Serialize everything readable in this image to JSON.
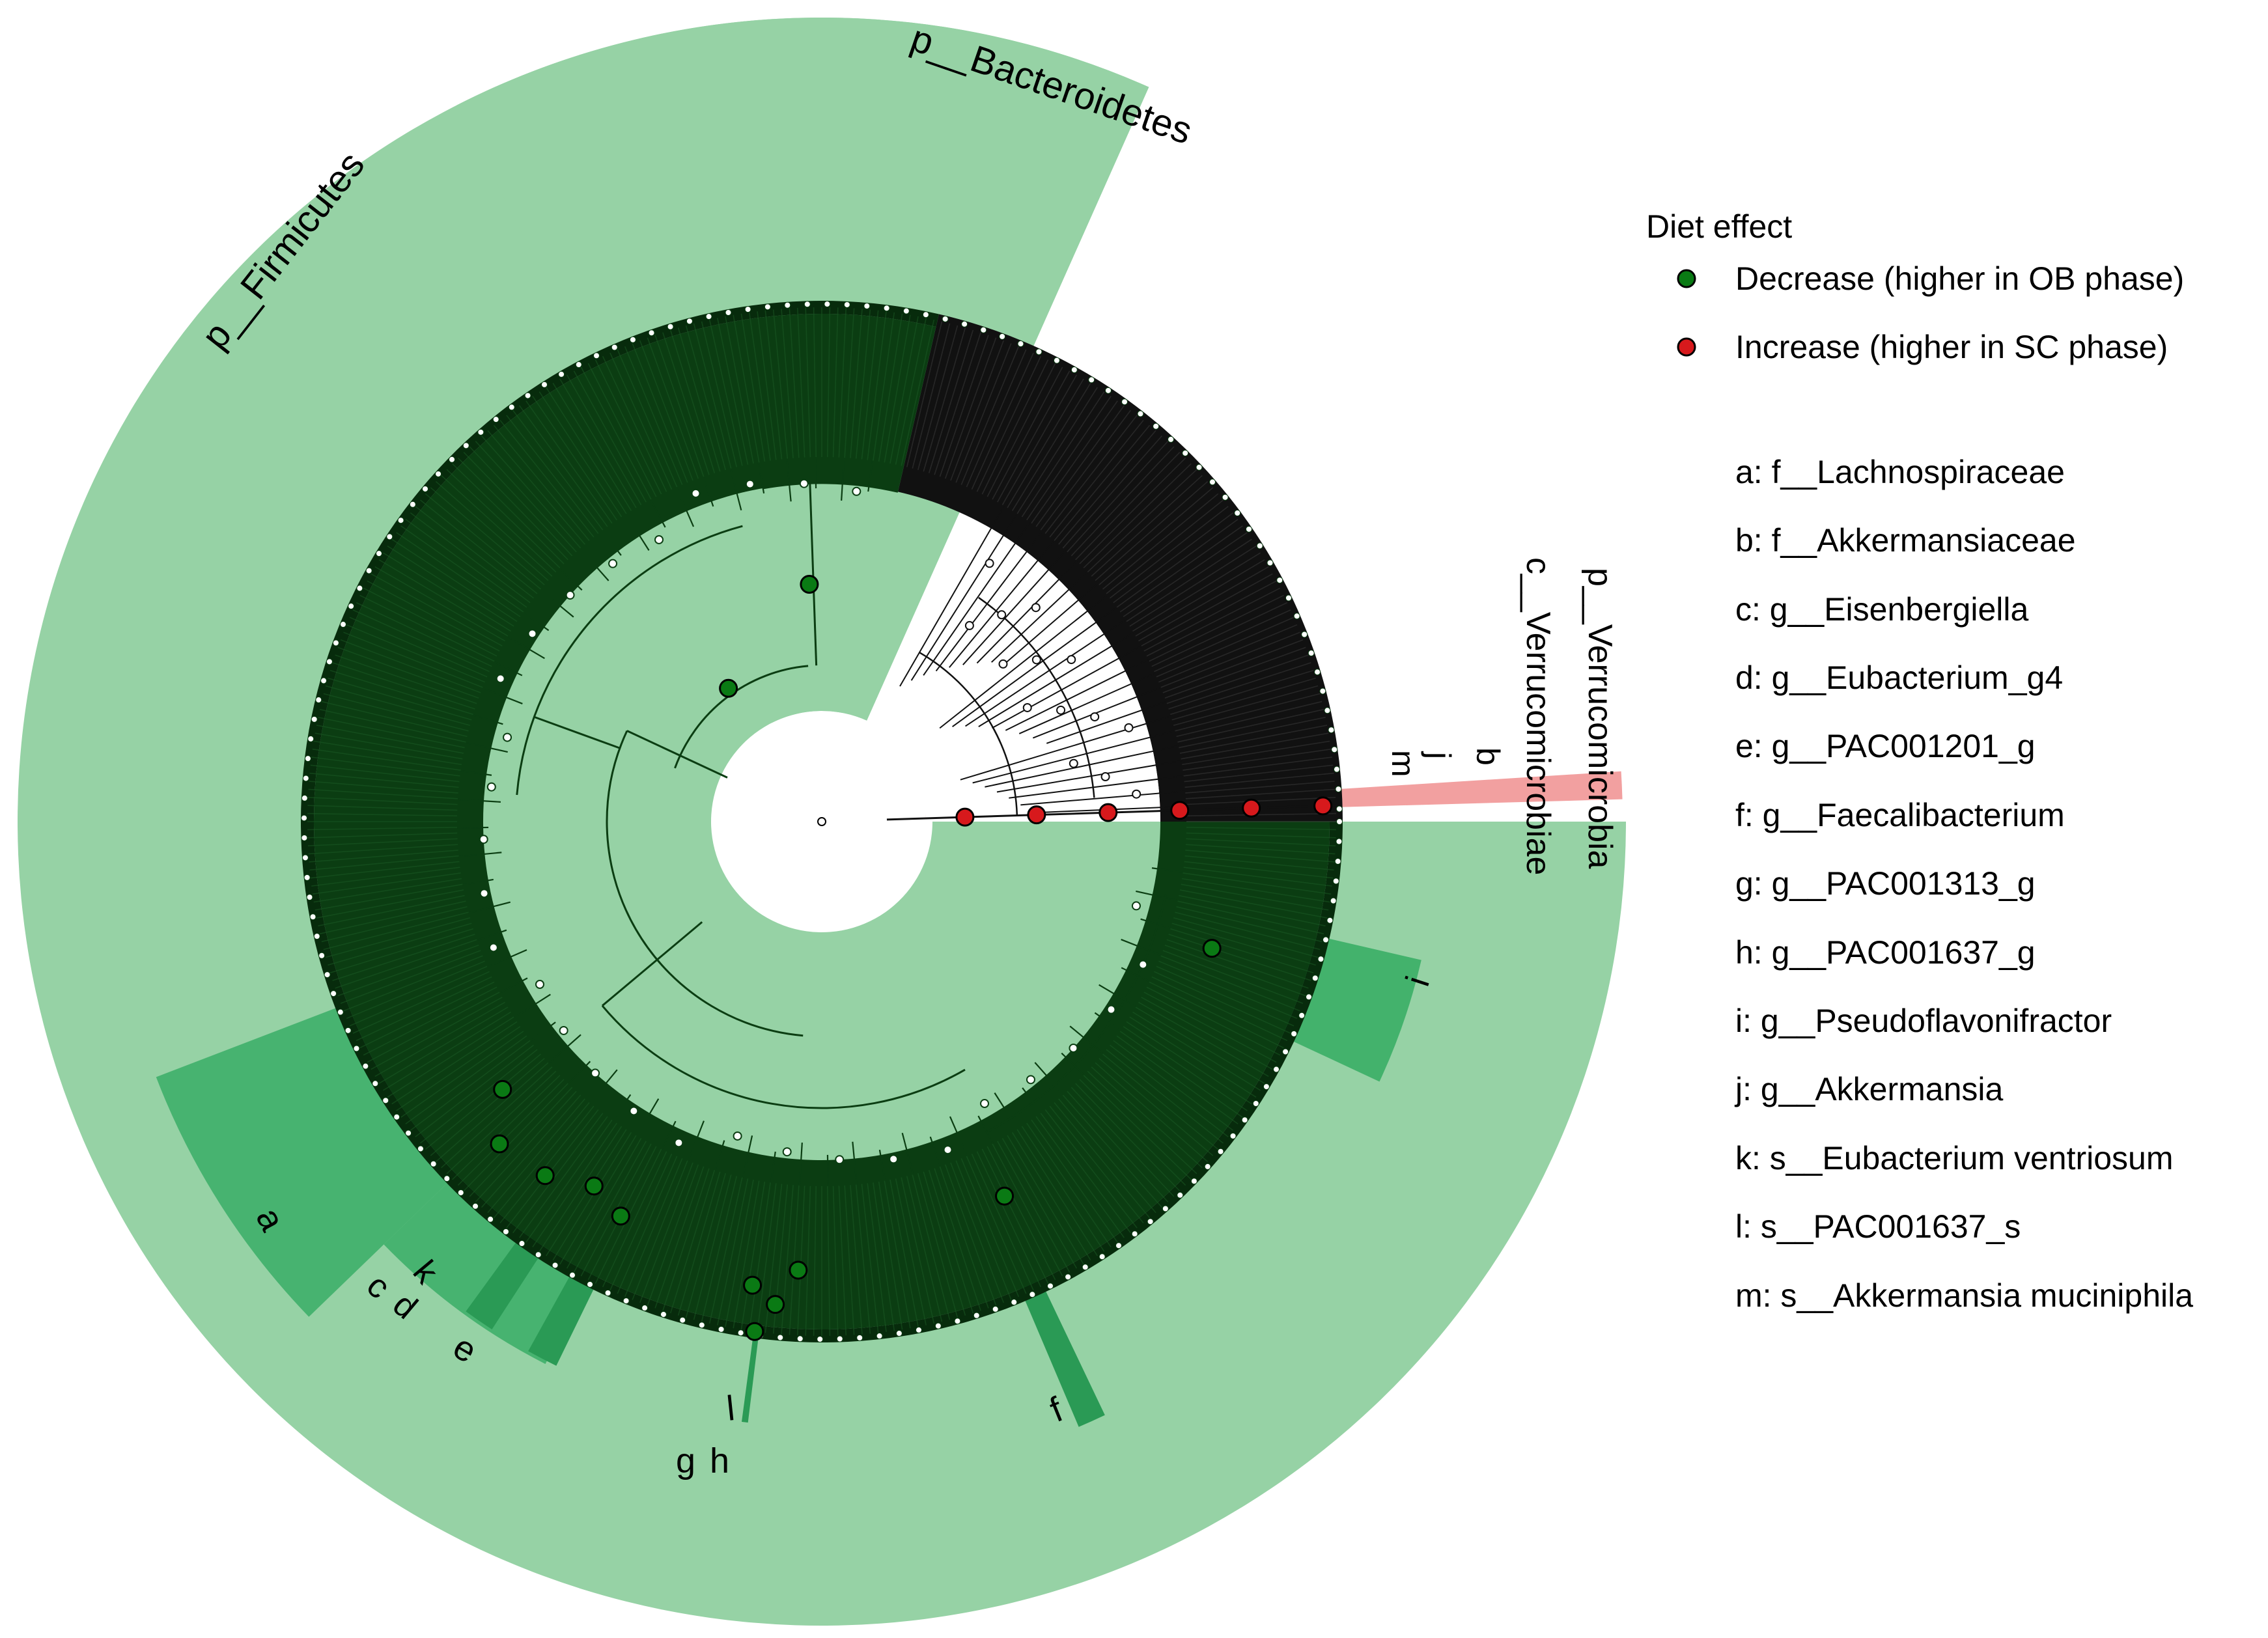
{
  "legend": {
    "title": "Diet effect",
    "items": [
      {
        "label": "Decrease (higher in OB phase)",
        "color": "#0a7a14"
      },
      {
        "label": "Increase (higher in SC phase)",
        "color": "#d7191c"
      }
    ]
  },
  "annotations": [
    {
      "letter": "a",
      "text": "a: f__Lachnospiraceae"
    },
    {
      "letter": "b",
      "text": "b: f__Akkermansiaceae"
    },
    {
      "letter": "c",
      "text": "c: g__Eisenbergiella"
    },
    {
      "letter": "d",
      "text": "d: g__Eubacterium_g4"
    },
    {
      "letter": "e",
      "text": "e: g__PAC001201_g"
    },
    {
      "letter": "f",
      "text": "f: g__Faecalibacterium"
    },
    {
      "letter": "g",
      "text": "g: g__PAC001313_g"
    },
    {
      "letter": "h",
      "text": "h: g__PAC001637_g"
    },
    {
      "letter": "i",
      "text": "i: g__Pseudoflavonifractor"
    },
    {
      "letter": "j",
      "text": "j: g__Akkermansia"
    },
    {
      "letter": "k",
      "text": "k: s__Eubacterium ventriosum"
    },
    {
      "letter": "l",
      "text": "l: s__PAC001637_s"
    },
    {
      "letter": "m",
      "text": "m: s__Akkermansia muciniphila"
    }
  ],
  "clades": {
    "firmicutes": "p__Firmicutes",
    "bacteroidetes": "p__Bacteroidetes",
    "verrucomicrobia": "p__Verrucomicrobia",
    "verrucomicrobiae": "c__Verrucomicrobiae"
  },
  "cladeLetters": {
    "a": "a",
    "b": "b",
    "c": "c",
    "d": "d",
    "e": "e",
    "f": "f",
    "g": "g",
    "h": "h",
    "i": "i",
    "j": "j",
    "k": "k",
    "l": "l",
    "m": "m"
  },
  "colors": {
    "shading": "#96d2a5",
    "highlight": "#3aae66",
    "highlightDark": "#2a9a55",
    "ring": "#0b3d12",
    "ringOuter": "#072b0c",
    "branch": "#0b3d12",
    "blackRing": "#111111",
    "redBand": "#f2a0a0",
    "decrease": "#0a7a14",
    "increase": "#d7191c"
  }
}
